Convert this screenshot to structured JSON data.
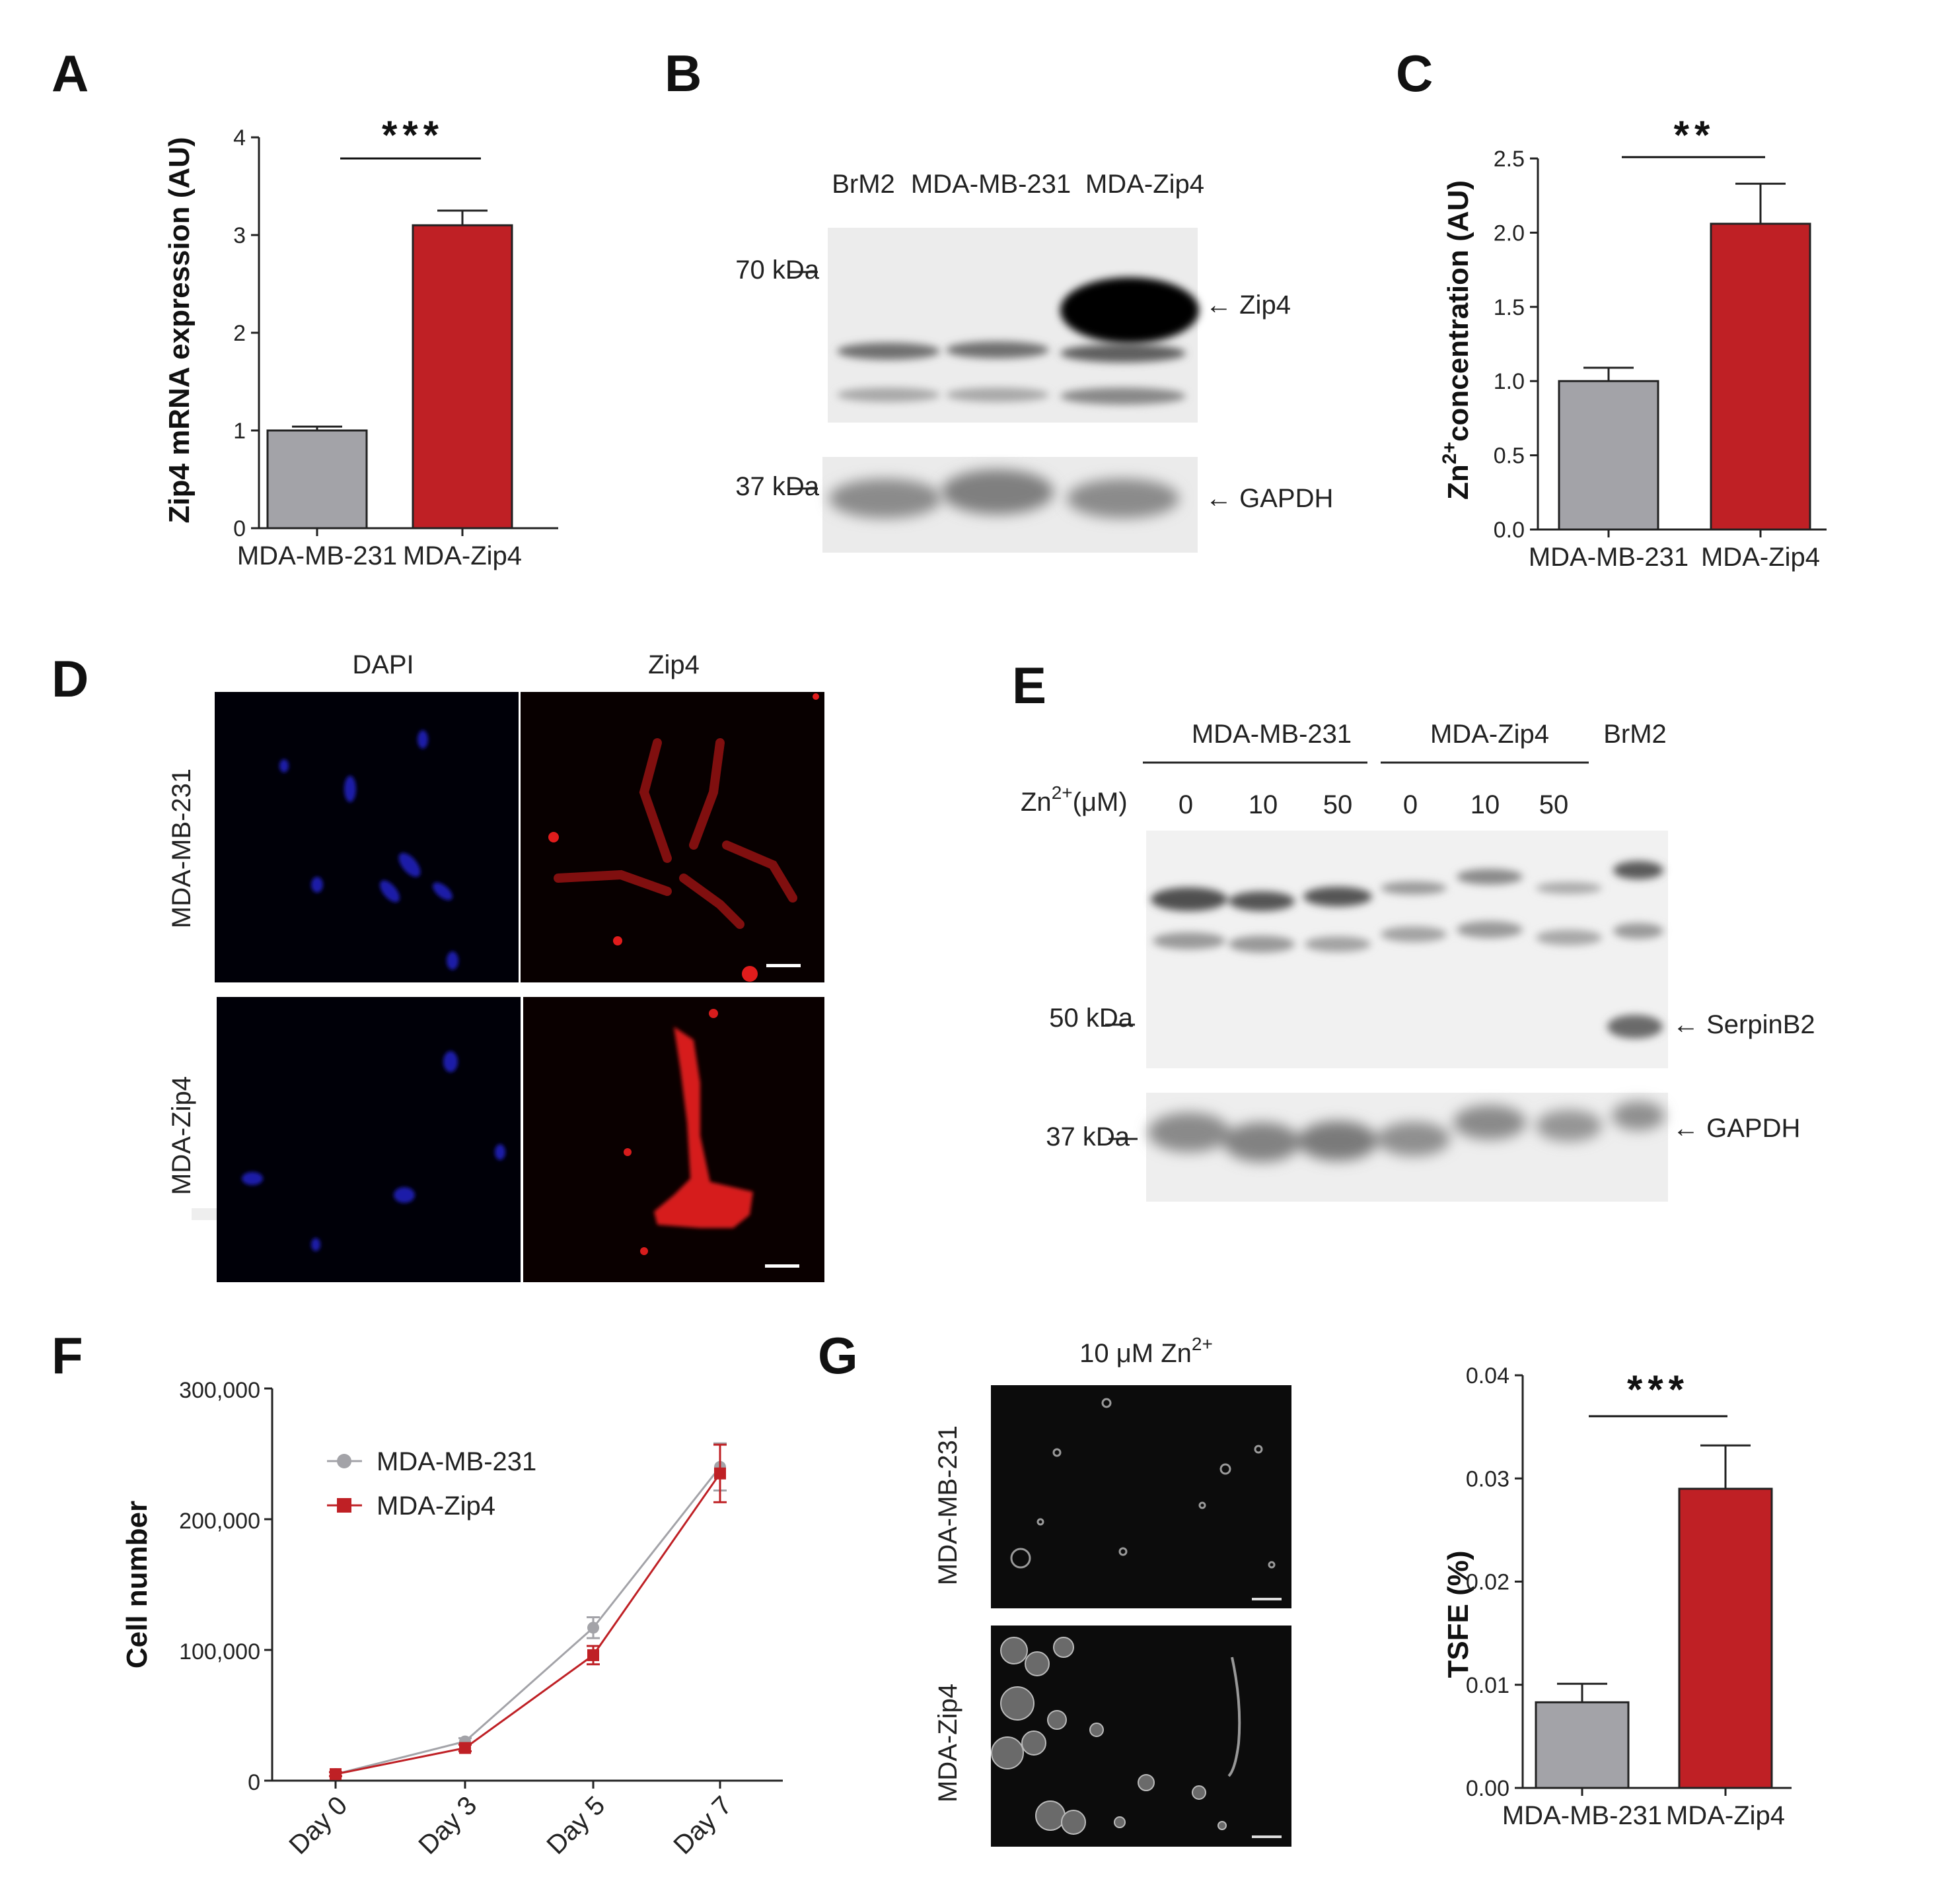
{
  "colors": {
    "control": "#a3a3a8",
    "zip4": "#bf2025",
    "dapi": "#1a1aa8",
    "zip4_stain": "#d61c1c",
    "microscopy_bg": "#000000",
    "blot_bg": "#efefef"
  },
  "panels": {
    "A": {
      "letter": "A",
      "stars": "***",
      "chart_data": {
        "type": "bar",
        "categories": [
          "MDA-MB-231",
          "MDA-Zip4"
        ],
        "values": [
          1.0,
          3.1
        ],
        "errors": [
          0.04,
          0.15
        ],
        "ylabel": "Zip4 mRNA expression (AU)",
        "ylim": [
          0,
          4
        ],
        "yticks": [
          "0",
          "1",
          "2",
          "3",
          "4"
        ],
        "bar_colors": [
          "#a3a3a8",
          "#bf2025"
        ]
      }
    },
    "B": {
      "letter": "B",
      "lanes": [
        "BrM2",
        "MDA-MB-231",
        "MDA-Zip4"
      ],
      "markers": [
        "70 kDa",
        "37 kDa"
      ],
      "bands": [
        "Zip4",
        "GAPDH"
      ]
    },
    "C": {
      "letter": "C",
      "stars": "**",
      "chart_data": {
        "type": "bar",
        "categories": [
          "MDA-MB-231",
          "MDA-Zip4"
        ],
        "values": [
          1.0,
          2.06
        ],
        "errors": [
          0.09,
          0.27
        ],
        "ylabel_prefix": "Zn",
        "ylabel_sup": "2+",
        "ylabel_rest": "concentration (AU)",
        "ylim": [
          0,
          2.5
        ],
        "yticks": [
          "0.0",
          "0.5",
          "1.0",
          "1.5",
          "2.0",
          "2.5"
        ],
        "bar_colors": [
          "#a3a3a8",
          "#bf2025"
        ]
      }
    },
    "D": {
      "letter": "D",
      "columns": [
        "DAPI",
        "Zip4"
      ],
      "rows": [
        "MDA-MB-231",
        "MDA-Zip4"
      ]
    },
    "E": {
      "letter": "E",
      "groups": [
        "MDA-MB-231",
        "MDA-Zip4",
        "BrM2"
      ],
      "zn_label_prefix": "Zn",
      "zn_label_sup": "2+",
      "zn_label_rest": "(μM)",
      "concentrations": [
        "0",
        "10",
        "50",
        "0",
        "10",
        "50"
      ],
      "markers": [
        "50 kDa",
        "37 kDa"
      ],
      "bands": [
        "SerpinB2",
        "GAPDH"
      ]
    },
    "F": {
      "letter": "F",
      "chart_data": {
        "type": "line",
        "x": [
          "Day 0",
          "Day 3",
          "Day 5",
          "Day 7"
        ],
        "series": [
          {
            "name": "MDA-MB-231",
            "values": [
              5000,
              30000,
              117000,
              240000
            ],
            "errors": [
              1500,
              2500,
              8000,
              18000
            ],
            "color": "#a3a3a8",
            "marker": "circle"
          },
          {
            "name": "MDA-Zip4",
            "values": [
              5000,
              25000,
              96000,
              235000
            ],
            "errors": [
              1500,
              2500,
              7000,
              22000
            ],
            "color": "#bf2025",
            "marker": "square"
          }
        ],
        "ylabel": "Cell number",
        "ylim": [
          0,
          300000
        ],
        "yticks": [
          "0",
          "100,000",
          "200,000",
          "300,000"
        ]
      }
    },
    "G": {
      "letter": "G",
      "image_title_prefix": "10 μM Zn",
      "image_title_sup": "2+",
      "rows": [
        "MDA-MB-231",
        "MDA-Zip4"
      ],
      "stars": "***",
      "chart_data": {
        "type": "bar",
        "categories": [
          "MDA-MB-231",
          "MDA-Zip4"
        ],
        "values": [
          0.0083,
          0.029
        ],
        "errors": [
          0.0018,
          0.0042
        ],
        "ylabel": "TSFE (%)",
        "ylim": [
          0,
          0.04
        ],
        "yticks": [
          "0.00",
          "0.01",
          "0.02",
          "0.03",
          "0.04"
        ],
        "bar_colors": [
          "#a3a3a8",
          "#bf2025"
        ]
      }
    }
  }
}
